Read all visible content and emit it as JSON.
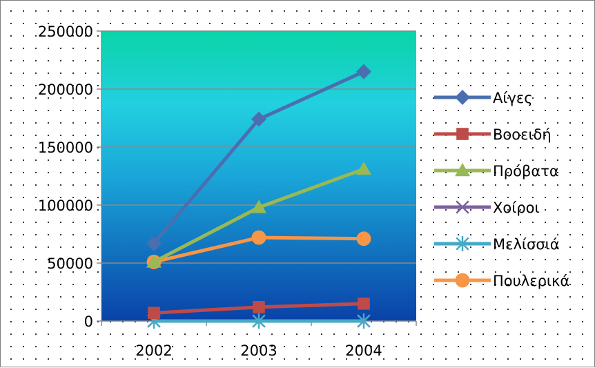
{
  "chart_data": {
    "type": "line",
    "categories": [
      "2002",
      "2003",
      "2004"
    ],
    "ylim": [
      0,
      250000
    ],
    "yticks": [
      0,
      50000,
      100000,
      150000,
      200000,
      250000
    ],
    "ytick_labels": [
      "0",
      "50000",
      "100000",
      "150000",
      "200000",
      "250000"
    ],
    "grid": "horizontal",
    "legend_position": "right",
    "plot_background": "gradient dark blue (bottom) to teal/green (top)",
    "series": [
      {
        "name": "Αίγες",
        "values": [
          67000,
          174000,
          215000
        ],
        "color": "#4a6fb0",
        "marker": "diamond"
      },
      {
        "name": "Βοοειδή",
        "values": [
          7000,
          12000,
          15000
        ],
        "color": "#be4b48",
        "marker": "square"
      },
      {
        "name": "Πρόβατα",
        "values": [
          51000,
          98000,
          131000
        ],
        "color": "#98b954",
        "marker": "triangle"
      },
      {
        "name": "Χοίροι",
        "values": [
          0,
          0,
          0
        ],
        "color": "#7d5fa0",
        "marker": "x"
      },
      {
        "name": "Μελίσσιά",
        "values": [
          0,
          0,
          0
        ],
        "color": "#46aac5",
        "marker": "star"
      },
      {
        "name": "Πουλερικά",
        "values": [
          51000,
          72000,
          71000
        ],
        "color": "#f79646",
        "marker": "circle"
      }
    ]
  }
}
